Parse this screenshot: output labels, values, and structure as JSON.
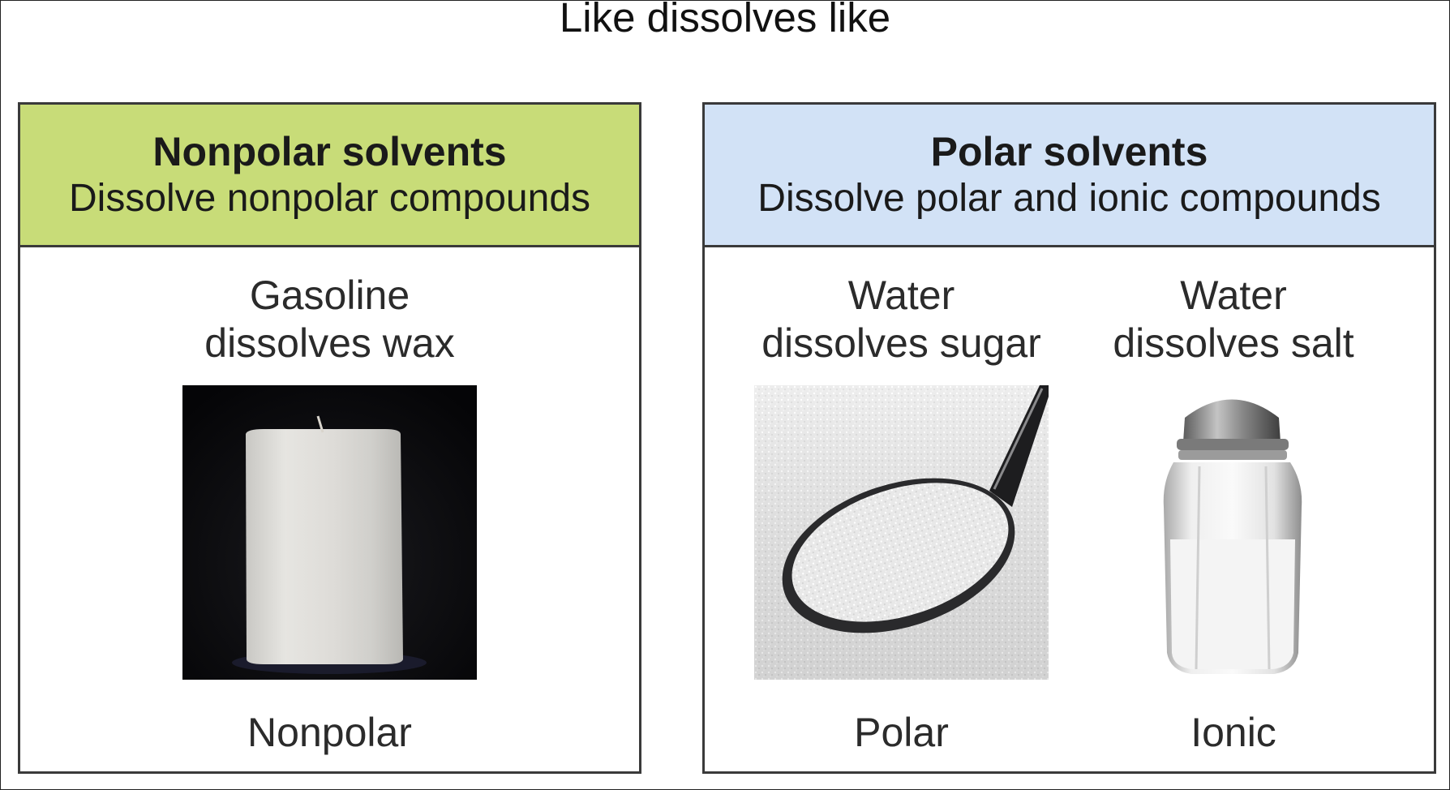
{
  "title": "Like dissolves like",
  "panels": {
    "nonpolar": {
      "title": "Nonpolar solvents",
      "subtitle": "Dissolve nonpolar compounds",
      "examples": [
        {
          "caption_line1": "Gasoline",
          "caption_line2": "dissolves wax",
          "photo": "candle-photo",
          "kind": "Nonpolar"
        }
      ]
    },
    "polar": {
      "title": "Polar solvents",
      "subtitle": "Dissolve polar and ionic compounds",
      "examples": [
        {
          "caption_line1": "Water",
          "caption_line2": "dissolves sugar",
          "photo": "sugar-spoon-photo",
          "kind": "Polar"
        },
        {
          "caption_line1": "Water",
          "caption_line2": "dissolves salt",
          "photo": "salt-shaker-photo",
          "kind": "Ionic"
        }
      ]
    }
  },
  "colors": {
    "nonpolar_header": "#c8dc78",
    "polar_header": "#d2e2f6",
    "border": "#3a3a3a"
  }
}
